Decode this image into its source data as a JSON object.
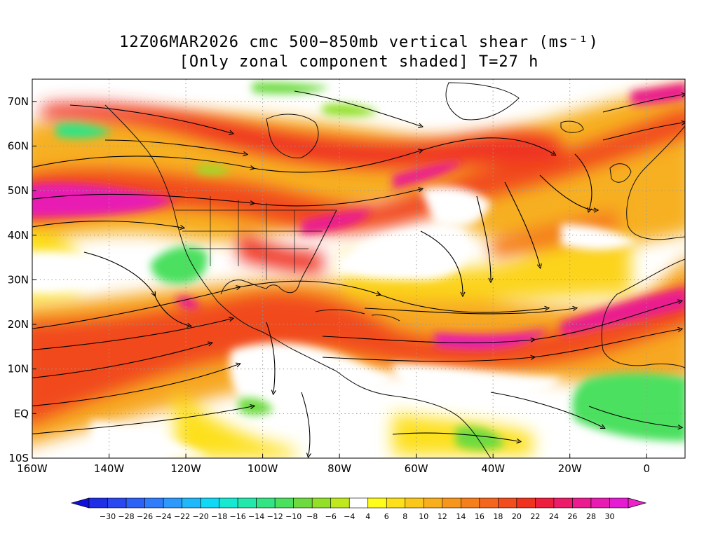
{
  "title": {
    "line1": "12Z06MAR2026 cmc 500−850mb vertical shear (ms⁻¹)",
    "line2": "[Only zonal component shaded] T=27 h"
  },
  "map": {
    "lon_range": [
      -160,
      10
    ],
    "lat_range": [
      -10,
      75
    ],
    "lat_ticks": [
      {
        "value": 70,
        "label": "70N"
      },
      {
        "value": 60,
        "label": "60N"
      },
      {
        "value": 50,
        "label": "50N"
      },
      {
        "value": 40,
        "label": "40N"
      },
      {
        "value": 30,
        "label": "30N"
      },
      {
        "value": 20,
        "label": "20N"
      },
      {
        "value": 10,
        "label": "10N"
      },
      {
        "value": 0,
        "label": "EQ"
      },
      {
        "value": -10,
        "label": "10S"
      }
    ],
    "lon_ticks": [
      {
        "value": -160,
        "label": "160W"
      },
      {
        "value": -140,
        "label": "140W"
      },
      {
        "value": -120,
        "label": "120W"
      },
      {
        "value": -100,
        "label": "100W"
      },
      {
        "value": -80,
        "label": "80W"
      },
      {
        "value": -60,
        "label": "60W"
      },
      {
        "value": -40,
        "label": "40W"
      },
      {
        "value": -20,
        "label": "20W"
      },
      {
        "value": 0,
        "label": "0"
      }
    ],
    "gridlines": true,
    "colors": {
      "border": "#000000",
      "coast": "#111111",
      "grid": "#9a9a9a",
      "streamline": "#000000"
    }
  },
  "colorbar": {
    "labels": [
      "−30",
      "−28",
      "−26",
      "−24",
      "−22",
      "−20",
      "−18",
      "−16",
      "−14",
      "−12",
      "−10",
      "−8",
      "−6",
      "−4",
      "4",
      "6",
      "8",
      "10",
      "12",
      "14",
      "16",
      "18",
      "20",
      "22",
      "24",
      "26",
      "28",
      "30"
    ],
    "colors": [
      "#1f2fe6",
      "#2a48f0",
      "#2d62f7",
      "#2f7dfa",
      "#2c99fb",
      "#20b8fb",
      "#10d8f5",
      "#16e8d2",
      "#22e8ab",
      "#33e483",
      "#4be05e",
      "#6ddb3f",
      "#93e02a",
      "#c0e81f",
      "#ffffff",
      "#fffb1a",
      "#fde01b",
      "#fbc71c",
      "#f9ae1d",
      "#f7961d",
      "#f57e1d",
      "#f4661d",
      "#f24d1e",
      "#f0331f",
      "#ee1f3e",
      "#ec1c6a",
      "#ea1c8f",
      "#e81cb2",
      "#e61cd2"
    ],
    "left_arrow_color": "#1010dd",
    "right_arrow_color": "#ee22cc"
  }
}
